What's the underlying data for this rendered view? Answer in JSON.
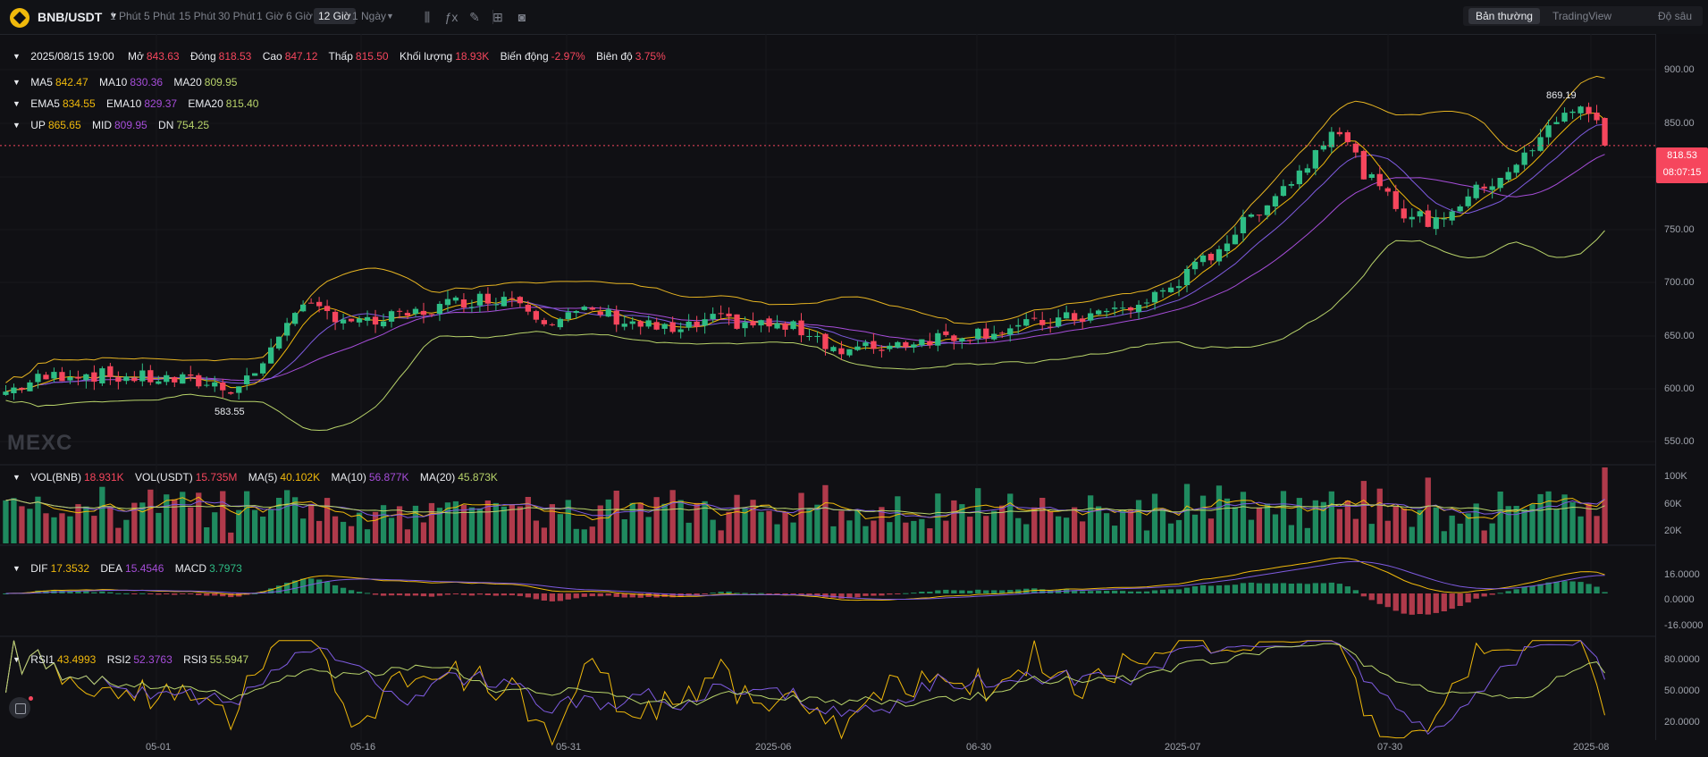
{
  "header": {
    "pair": "BNB/USDT",
    "timeframes": [
      "1 Phút",
      "5 Phút",
      "15 Phút",
      "30 Phút",
      "1 Giờ",
      "6 Giờ",
      "12 Giờ",
      "1 Ngày"
    ],
    "active_timeframe": "12 Giờ",
    "view_modes": [
      "Bản thường",
      "TradingView",
      "Độ sâu"
    ],
    "active_view": "Bản thường",
    "tools": [
      "indicator-icon",
      "fx-icon",
      "pencil-icon",
      "layout-icon",
      "camera-icon"
    ]
  },
  "ohlc": {
    "date": "2025/08/15 19:00",
    "open_label": "Mở",
    "open": "843.63",
    "close_label": "Đóng",
    "close": "818.53",
    "high_label": "Cao",
    "high": "847.12",
    "low_label": "Thấp",
    "low": "815.50",
    "vol_label": "Khối lượng",
    "vol": "18.93K",
    "change_label": "Biến động",
    "change": "-2.97%",
    "range_label": "Biên độ",
    "range": "3.75%"
  },
  "ma": {
    "ma5_label": "MA5",
    "ma5": "842.47",
    "ma10_label": "MA10",
    "ma10": "830.36",
    "ma20_label": "MA20",
    "ma20": "809.95"
  },
  "ema": {
    "ema5_label": "EMA5",
    "ema5": "834.55",
    "ema10_label": "EMA10",
    "ema10": "829.37",
    "ema20_label": "EMA20",
    "ema20": "815.40"
  },
  "boll": {
    "up_label": "UP",
    "up": "865.65",
    "mid_label": "MID",
    "mid": "809.95",
    "dn_label": "DN",
    "dn": "754.25"
  },
  "volume": {
    "vbnb_label": "VOL(BNB)",
    "vbnb": "18.931K",
    "vusdt_label": "VOL(USDT)",
    "vusdt": "15.735M",
    "ma5_label": "MA(5)",
    "ma5": "40.102K",
    "ma10_label": "MA(10)",
    "ma10": "56.877K",
    "ma20_label": "MA(20)",
    "ma20": "45.873K"
  },
  "macd": {
    "dif_label": "DIF",
    "dif": "17.3532",
    "dea_label": "DEA",
    "dea": "15.4546",
    "macd_label": "MACD",
    "macd": "3.7973"
  },
  "rsi": {
    "rsi1_label": "RSI1",
    "rsi1": "43.4993",
    "rsi2_label": "RSI2",
    "rsi2": "52.3763",
    "rsi3_label": "RSI3",
    "rsi3": "55.5947"
  },
  "price_axis": [
    "900.00",
    "850.00",
    "800.00",
    "750.00",
    "700.00",
    "650.00",
    "600.00",
    "550.00"
  ],
  "vol_axis": [
    "100K",
    "60K",
    "20K"
  ],
  "macd_axis": [
    "16.0000",
    "0.0000",
    "-16.0000"
  ],
  "rsi_axis": [
    "80.0000",
    "50.0000",
    "20.0000"
  ],
  "x_axis": [
    "05-01",
    "05-16",
    "05-31",
    "2025-06",
    "06-30",
    "2025-07",
    "07-30",
    "2025-08"
  ],
  "last_price": "818.53",
  "countdown": "08:07:15",
  "high_mark": "869.19",
  "low_mark": "583.55",
  "watermark": "MEXC",
  "colors": {
    "up": "#2ebd85",
    "down": "#f6465d",
    "ma5": "#f0b90b",
    "ma10": "#a64dd9",
    "ma20": "#b8d36a",
    "boll": "#e6b422"
  },
  "chart_data": {
    "type": "candlestick",
    "price_range": [
      530,
      920
    ],
    "close_path": [
      {
        "t": 0,
        "v": 595
      },
      {
        "t": 0.02,
        "v": 606
      },
      {
        "t": 0.04,
        "v": 612
      },
      {
        "t": 0.07,
        "v": 608
      },
      {
        "t": 0.09,
        "v": 607
      },
      {
        "t": 0.12,
        "v": 603
      },
      {
        "t": 0.14,
        "v": 598
      },
      {
        "t": 0.16,
        "v": 625
      },
      {
        "t": 0.175,
        "v": 672
      },
      {
        "t": 0.2,
        "v": 665
      },
      {
        "t": 0.22,
        "v": 656
      },
      {
        "t": 0.25,
        "v": 666
      },
      {
        "t": 0.28,
        "v": 678
      },
      {
        "t": 0.31,
        "v": 682
      },
      {
        "t": 0.33,
        "v": 660
      },
      {
        "t": 0.36,
        "v": 668
      },
      {
        "t": 0.38,
        "v": 658
      },
      {
        "t": 0.41,
        "v": 648
      },
      {
        "t": 0.43,
        "v": 660
      },
      {
        "t": 0.46,
        "v": 656
      },
      {
        "t": 0.49,
        "v": 650
      },
      {
        "t": 0.51,
        "v": 630
      },
      {
        "t": 0.54,
        "v": 638
      },
      {
        "t": 0.57,
        "v": 645
      },
      {
        "t": 0.6,
        "v": 650
      },
      {
        "t": 0.63,
        "v": 656
      },
      {
        "t": 0.66,
        "v": 664
      },
      {
        "t": 0.69,
        "v": 672
      },
      {
        "t": 0.72,
        "v": 700
      },
      {
        "t": 0.75,
        "v": 740
      },
      {
        "t": 0.77,
        "v": 770
      },
      {
        "t": 0.79,
        "v": 795
      },
      {
        "t": 0.81,
        "v": 840
      },
      {
        "t": 0.83,
        "v": 790
      },
      {
        "t": 0.85,
        "v": 760
      },
      {
        "t": 0.87,
        "v": 748
      },
      {
        "t": 0.89,
        "v": 770
      },
      {
        "t": 0.91,
        "v": 790
      },
      {
        "t": 0.93,
        "v": 812
      },
      {
        "t": 0.95,
        "v": 852
      },
      {
        "t": 0.97,
        "v": 846
      },
      {
        "t": 0.98,
        "v": 818
      }
    ]
  }
}
